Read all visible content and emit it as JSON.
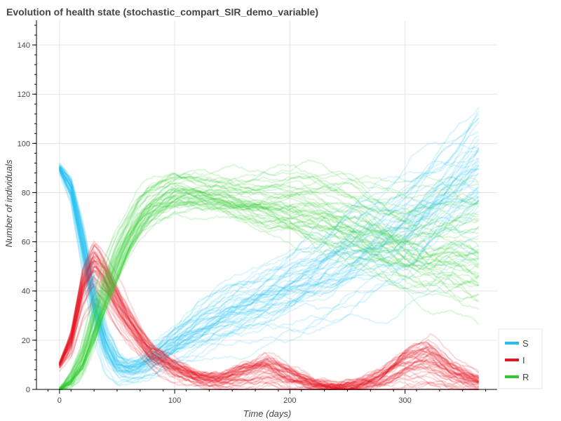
{
  "chart_data": {
    "type": "line",
    "title": "Evolution of health state (stochastic_compart_SIR_demo_variable)",
    "xlabel": "Time (days)",
    "ylabel": "Number of individuals",
    "xlim": [
      -20,
      380
    ],
    "ylim": [
      0,
      150
    ],
    "x_ticks": [
      0,
      100,
      200,
      300
    ],
    "y_ticks": [
      0,
      20,
      40,
      60,
      80,
      100,
      120,
      140
    ],
    "grid": true,
    "legend_position": "bottom-right",
    "trajectories_per_series": 50,
    "series": [
      {
        "name": "S",
        "color": "#1fc0f0",
        "x": [
          0,
          10,
          20,
          30,
          40,
          50,
          60,
          70,
          80,
          100,
          120,
          140,
          160,
          180,
          200,
          220,
          240,
          260,
          280,
          300,
          320,
          340,
          365
        ],
        "mean": [
          90,
          82,
          60,
          35,
          18,
          10,
          8,
          9,
          12,
          18,
          24,
          29,
          33,
          37,
          41,
          45,
          50,
          55,
          60,
          65,
          72,
          80,
          88
        ],
        "spread": [
          1,
          3,
          6,
          7,
          6,
          4,
          3,
          3,
          4,
          5,
          7,
          8,
          9,
          10,
          11,
          12,
          13,
          14,
          15,
          16,
          17,
          18,
          20
        ]
      },
      {
        "name": "I",
        "color": "#e8141e",
        "x": [
          0,
          10,
          20,
          30,
          40,
          50,
          60,
          70,
          80,
          100,
          120,
          140,
          160,
          180,
          200,
          220,
          240,
          260,
          280,
          300,
          320,
          340,
          365
        ],
        "mean": [
          10,
          20,
          42,
          52,
          46,
          36,
          28,
          21,
          15,
          9,
          5,
          4,
          7,
          9,
          5,
          2,
          1,
          2,
          5,
          11,
          13,
          7,
          3
        ],
        "spread": [
          1,
          4,
          7,
          8,
          7,
          6,
          5,
          4,
          3,
          3,
          2,
          3,
          5,
          6,
          4,
          2,
          1,
          2,
          4,
          7,
          8,
          5,
          3
        ]
      },
      {
        "name": "R",
        "color": "#2ecc2e",
        "x": [
          0,
          10,
          20,
          30,
          40,
          50,
          60,
          70,
          80,
          100,
          120,
          140,
          160,
          180,
          200,
          220,
          240,
          260,
          280,
          300,
          320,
          340,
          365
        ],
        "mean": [
          0,
          4,
          12,
          26,
          40,
          52,
          62,
          70,
          75,
          80,
          80,
          79,
          77,
          76,
          75,
          73,
          70,
          67,
          63,
          60,
          58,
          58,
          56
        ],
        "spread": [
          0,
          2,
          4,
          6,
          6,
          6,
          5,
          5,
          5,
          5,
          5,
          5,
          6,
          7,
          8,
          9,
          10,
          11,
          12,
          13,
          14,
          14,
          15
        ]
      }
    ]
  }
}
